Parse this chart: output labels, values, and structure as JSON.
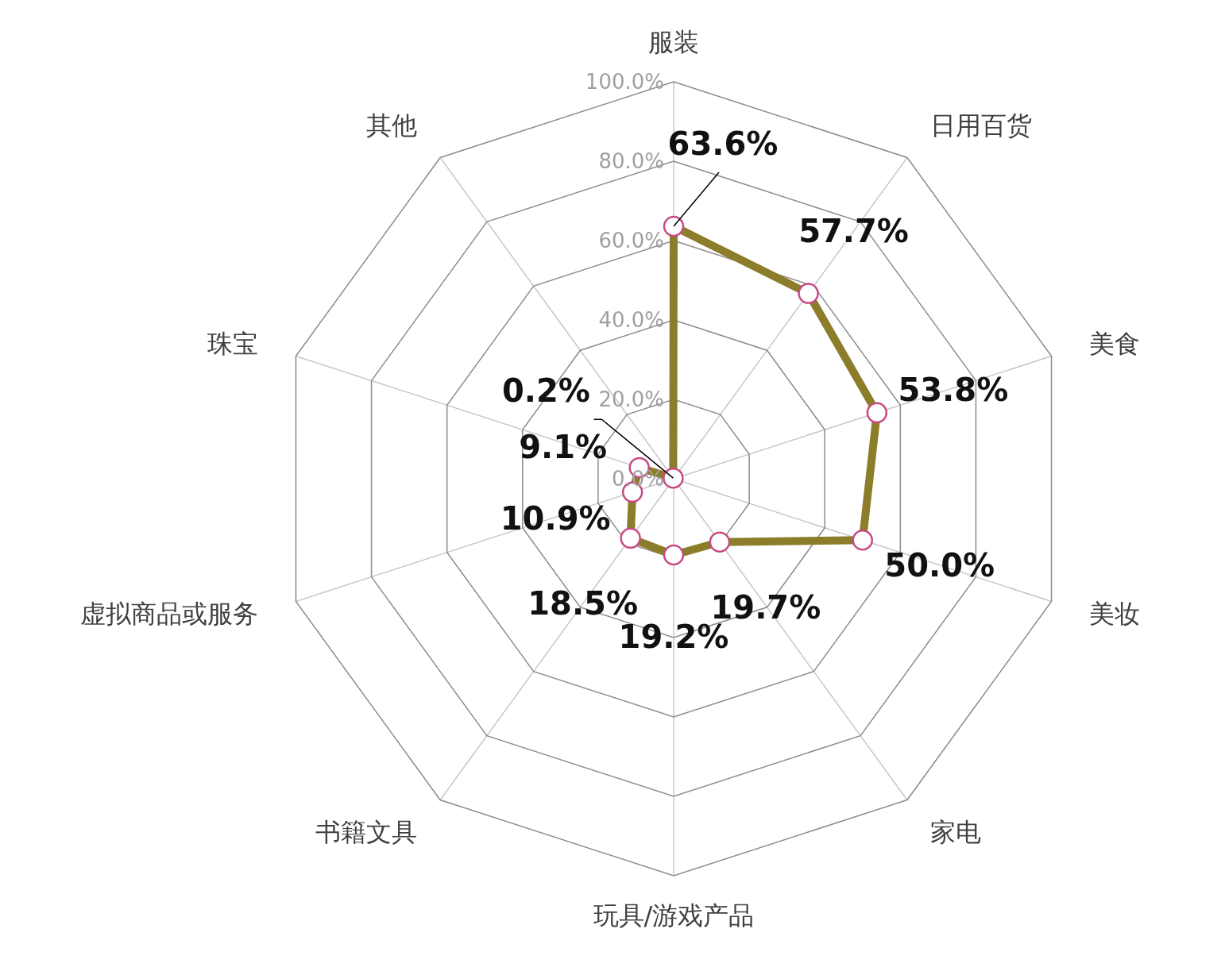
{
  "chart_data": {
    "type": "radar",
    "categories": [
      "服装",
      "日用百货",
      "美食",
      "美妆",
      "家电",
      "玩具/游戏产品",
      "书籍文具",
      "虚拟商品或服务",
      "珠宝",
      "其他"
    ],
    "series": [
      {
        "color": "#8b7d2a",
        "values": [
          63.6,
          57.7,
          53.8,
          50.0,
          19.7,
          19.2,
          18.5,
          10.9,
          9.1,
          0.2
        ],
        "value_labels": [
          "63.6%",
          "57.7%",
          "53.8%",
          "50.0%",
          "19.7%",
          "19.2%",
          "18.5%",
          "10.9%",
          "9.1%",
          "0.2%"
        ]
      }
    ],
    "ylim": [
      0,
      100
    ],
    "yticks": [
      {
        "value": 0,
        "label": "0.0%"
      },
      {
        "value": 20,
        "label": "20.0%"
      },
      {
        "value": 40,
        "label": "40.0%"
      },
      {
        "value": 60,
        "label": "60.0%"
      },
      {
        "value": 80,
        "label": "80.0%"
      },
      {
        "value": 100,
        "label": "100.0%"
      }
    ],
    "grid": true,
    "marker": "circle"
  }
}
